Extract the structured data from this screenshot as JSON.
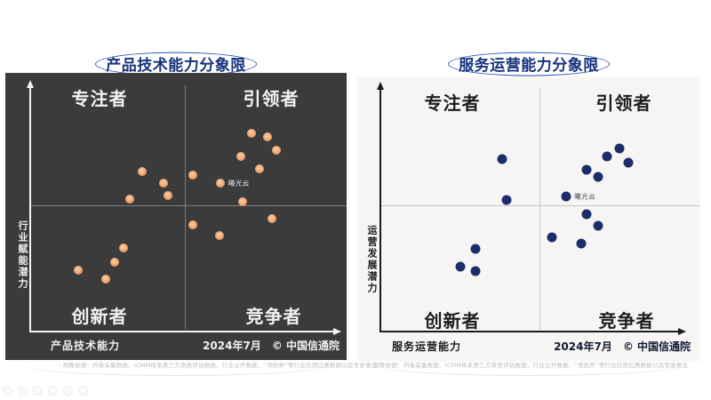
{
  "charts": [
    {
      "title": "产品技术能力分象限",
      "quadrants": {
        "top_left": "专注者",
        "top_right": "引领者",
        "bottom_left": "创新者",
        "bottom_right": "竞争者"
      },
      "y_label": "行业赋能潜力",
      "x_label": "产品技术能力",
      "date": "2024年7月",
      "source": "© 中国信通院",
      "footnote": "·  测算依据：问卷采集数据、ICMM体系第三方资质评估数据、行业公开数据、“领航杯”等行业应用比赛数据以及专家意见",
      "panel_bg": "#3b3b3b",
      "dot_color": "#e8935c",
      "dot_color_light": "#f9d2a8",
      "dot_style": "gradient",
      "dot_size": 10,
      "annotation_color": "#e8e8e8"
    },
    {
      "title": "服务运营能力分象限",
      "quadrants": {
        "top_left": "专注者",
        "top_right": "引领者",
        "bottom_left": "创新者",
        "bottom_right": "竞争者"
      },
      "y_label": "运营发展潜力",
      "x_label": "服务运营能力",
      "date": "2024年7月",
      "source": "© 中国信通院",
      "footnote": "·  测算依据：问卷采集数据、ICMM体系第三方资质评估数据、行业公开数据、“领航杯”等行业应用比赛数据以及专家意见",
      "panel_bg": "#f6f5f3",
      "dot_color": "#1b2e6b",
      "dot_color_light": "#1b2e6b",
      "dot_style": "solid",
      "dot_size": 11,
      "annotation_color": "#4a4a4a"
    }
  ],
  "chart_data": [
    {
      "type": "scatter",
      "title": "产品技术能力分象限",
      "xlabel": "产品技术能力",
      "ylabel": "行业赋能潜力",
      "xlim": [
        0,
        100
      ],
      "ylim": [
        0,
        100
      ],
      "grid": "quadrant-midlines",
      "quadrant_labels": {
        "top_left": "专注者",
        "top_right": "引领者",
        "bottom_left": "创新者",
        "bottom_right": "竞争者"
      },
      "annotations": [
        {
          "text": "曦光云",
          "x": 62.6,
          "y": 60.6
        }
      ],
      "points": [
        [
          73,
          81
        ],
        [
          78,
          79.5
        ],
        [
          81,
          74
        ],
        [
          69.5,
          71.5
        ],
        [
          75.5,
          66.5
        ],
        [
          37,
          65.5
        ],
        [
          53.5,
          64
        ],
        [
          44,
          60.5
        ],
        [
          62.6,
          60.6
        ],
        [
          45.5,
          55.5
        ],
        [
          33,
          54
        ],
        [
          70,
          53
        ],
        [
          79.5,
          46
        ],
        [
          53.5,
          43.5
        ],
        [
          62.5,
          39
        ],
        [
          31,
          34
        ],
        [
          28,
          28
        ],
        [
          16,
          25
        ],
        [
          25,
          21
        ]
      ]
    },
    {
      "type": "scatter",
      "title": "服务运营能力分象限",
      "xlabel": "服务运营能力",
      "ylabel": "运营发展潜力",
      "xlim": [
        0,
        100
      ],
      "ylim": [
        0,
        100
      ],
      "grid": "quadrant-midlines",
      "quadrant_labels": {
        "top_left": "专注者",
        "top_right": "引领者",
        "bottom_left": "创新者",
        "bottom_right": "竞争者"
      },
      "annotations": [
        {
          "text": "曦光云",
          "x": 62.4,
          "y": 55.6
        }
      ],
      "points": [
        [
          80,
          75.5
        ],
        [
          76,
          72
        ],
        [
          83,
          69.5
        ],
        [
          69,
          66.5
        ],
        [
          73,
          63.5
        ],
        [
          62.4,
          55.6
        ],
        [
          41,
          71
        ],
        [
          42.5,
          54
        ],
        [
          69,
          48
        ],
        [
          73,
          43.5
        ],
        [
          57.5,
          38.5
        ],
        [
          67.5,
          36
        ],
        [
          32,
          34
        ],
        [
          27,
          26.5
        ],
        [
          32,
          24.5
        ]
      ]
    }
  ],
  "watermark_icon_names": [
    "circle-icon",
    "circle-icon",
    "circle-icon",
    "circle-icon",
    "circle-icon",
    "circle-icon"
  ]
}
